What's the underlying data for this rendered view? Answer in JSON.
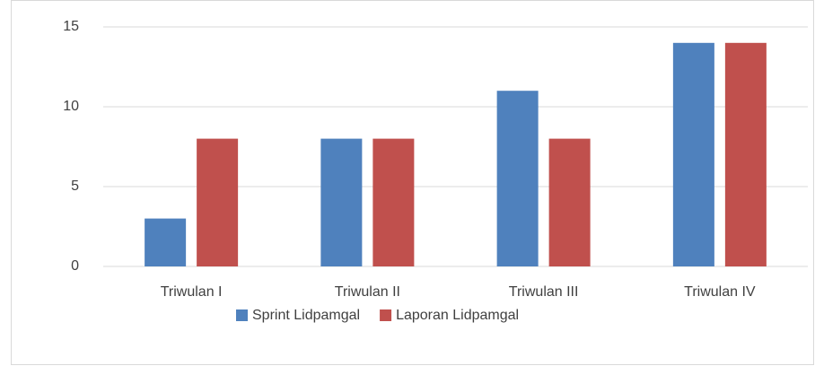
{
  "chart_data": {
    "type": "bar",
    "categories": [
      "Triwulan I",
      "Triwulan II",
      "Triwulan III",
      "Triwulan IV"
    ],
    "series": [
      {
        "name": "Sprint Lidpamgal",
        "color": "#4f81bd",
        "values": [
          3,
          8,
          11,
          14
        ]
      },
      {
        "name": "Laporan Lidpamgal",
        "color": "#c0504d",
        "values": [
          8,
          8,
          8,
          14
        ]
      }
    ],
    "ylim": [
      0,
      15
    ],
    "yticks": [
      0,
      5,
      10,
      15
    ],
    "grid": true,
    "legend": "bottom"
  }
}
